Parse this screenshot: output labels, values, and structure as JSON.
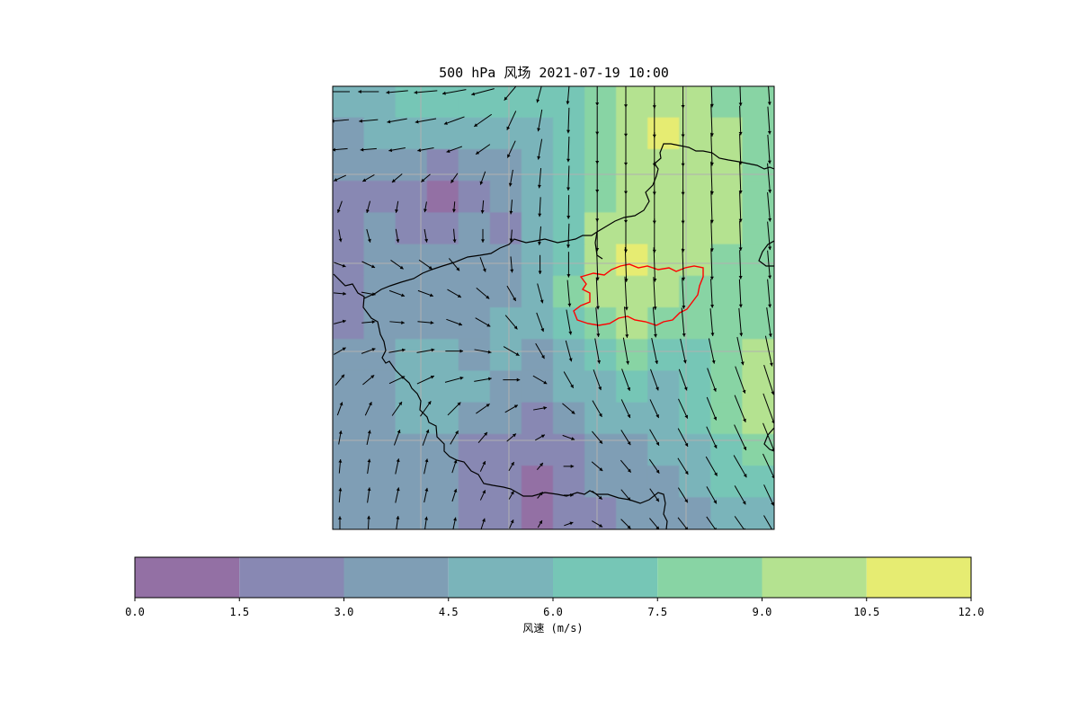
{
  "title": "500 hPa 风场 2021-07-19 10:00",
  "colorbar": {
    "label": "风速 (m/s)",
    "ticks": [
      "0.0",
      "1.5",
      "3.0",
      "4.5",
      "6.0",
      "7.5",
      "9.0",
      "10.5",
      "12.0"
    ],
    "bins": [
      {
        "min": 0.0,
        "max": 1.5,
        "color": "#9370a4"
      },
      {
        "min": 1.5,
        "max": 3.0,
        "color": "#8888b3"
      },
      {
        "min": 3.0,
        "max": 4.5,
        "color": "#7f9eb5"
      },
      {
        "min": 4.5,
        "max": 6.0,
        "color": "#7ab4ba"
      },
      {
        "min": 6.0,
        "max": 7.5,
        "color": "#76c6b6"
      },
      {
        "min": 7.5,
        "max": 9.0,
        "color": "#88d4a4"
      },
      {
        "min": 9.0,
        "max": 10.5,
        "color": "#b4e290"
      },
      {
        "min": 10.5,
        "max": 12.0,
        "color": "#e6ec72"
      }
    ]
  },
  "map": {
    "grid_lines": "on",
    "boundary_color": "#000000",
    "highlight_region_color": "#ff0000",
    "wind_speed_grid_ms": [
      [
        5.0,
        5.5,
        6.0,
        6.5,
        6.5,
        6.0,
        6.0,
        7.0,
        8.0,
        9.5,
        10.0,
        9.5,
        8.5,
        7.5
      ],
      [
        4.0,
        4.5,
        5.0,
        5.0,
        5.0,
        5.0,
        5.5,
        7.0,
        8.5,
        10.0,
        10.5,
        10.0,
        9.0,
        8.0
      ],
      [
        3.0,
        3.5,
        3.0,
        2.5,
        3.0,
        4.0,
        5.0,
        7.0,
        8.5,
        9.5,
        10.0,
        10.0,
        9.5,
        8.5
      ],
      [
        2.5,
        2.0,
        2.0,
        1.0,
        2.5,
        3.5,
        5.0,
        6.5,
        8.5,
        9.5,
        10.0,
        10.0,
        9.0,
        8.5
      ],
      [
        2.5,
        3.0,
        2.5,
        2.5,
        3.0,
        1.5,
        4.5,
        6.5,
        9.0,
        10.0,
        10.0,
        9.5,
        9.0,
        8.0
      ],
      [
        2.5,
        3.5,
        3.5,
        4.0,
        3.5,
        3.5,
        4.5,
        7.0,
        9.5,
        10.5,
        10.0,
        9.0,
        8.5,
        8.0
      ],
      [
        2.5,
        3.5,
        4.0,
        3.5,
        4.0,
        4.0,
        5.0,
        7.5,
        9.5,
        10.0,
        9.5,
        8.5,
        8.0,
        8.0
      ],
      [
        2.5,
        3.0,
        3.5,
        4.0,
        4.0,
        4.5,
        5.0,
        7.0,
        8.5,
        9.0,
        8.5,
        8.0,
        7.5,
        8.5
      ],
      [
        3.0,
        3.5,
        4.5,
        4.5,
        4.0,
        4.5,
        4.0,
        5.5,
        7.0,
        7.5,
        7.0,
        6.5,
        7.5,
        9.0
      ],
      [
        3.0,
        3.5,
        4.5,
        5.0,
        4.5,
        4.0,
        3.5,
        4.5,
        5.5,
        6.0,
        5.5,
        6.0,
        7.5,
        9.0
      ],
      [
        3.0,
        3.5,
        4.5,
        4.5,
        4.0,
        3.0,
        2.5,
        3.5,
        4.5,
        5.0,
        5.0,
        6.0,
        7.5,
        9.5
      ],
      [
        3.0,
        3.5,
        4.0,
        3.5,
        2.5,
        2.0,
        1.5,
        2.0,
        3.5,
        4.0,
        4.5,
        5.5,
        7.0,
        8.5
      ],
      [
        3.0,
        3.5,
        3.5,
        3.0,
        2.0,
        1.5,
        1.0,
        1.5,
        3.0,
        3.5,
        4.0,
        5.0,
        6.0,
        7.0
      ],
      [
        3.5,
        4.0,
        3.5,
        3.0,
        2.5,
        1.5,
        1.0,
        1.5,
        2.5,
        3.0,
        3.5,
        4.0,
        4.5,
        5.0
      ]
    ],
    "wind_direction_deg_grid": [
      [
        270,
        270,
        265,
        260,
        255,
        220,
        195,
        185,
        180,
        180,
        180,
        180,
        178,
        176
      ],
      [
        265,
        265,
        260,
        250,
        235,
        205,
        190,
        182,
        180,
        180,
        180,
        180,
        178,
        176
      ],
      [
        245,
        240,
        230,
        215,
        200,
        190,
        185,
        182,
        180,
        180,
        180,
        180,
        178,
        175
      ],
      [
        200,
        195,
        190,
        185,
        185,
        185,
        183,
        181,
        180,
        180,
        180,
        180,
        178,
        175
      ],
      [
        170,
        165,
        170,
        175,
        180,
        185,
        185,
        182,
        180,
        180,
        180,
        180,
        178,
        175
      ],
      [
        110,
        115,
        125,
        140,
        160,
        175,
        180,
        180,
        178,
        178,
        178,
        178,
        178,
        175
      ],
      [
        95,
        100,
        110,
        120,
        130,
        150,
        165,
        175,
        177,
        177,
        177,
        177,
        177,
        175
      ],
      [
        75,
        85,
        95,
        110,
        120,
        140,
        160,
        170,
        175,
        175,
        175,
        175,
        175,
        172
      ],
      [
        60,
        70,
        80,
        90,
        100,
        120,
        150,
        165,
        170,
        170,
        168,
        168,
        168,
        168
      ],
      [
        40,
        50,
        65,
        75,
        80,
        90,
        120,
        150,
        160,
        160,
        160,
        160,
        160,
        162
      ],
      [
        20,
        25,
        35,
        45,
        55,
        60,
        80,
        130,
        150,
        155,
        155,
        155,
        158,
        160
      ],
      [
        10,
        12,
        20,
        30,
        40,
        50,
        60,
        110,
        140,
        148,
        150,
        152,
        155,
        158
      ],
      [
        5,
        8,
        12,
        18,
        25,
        30,
        40,
        90,
        130,
        140,
        145,
        148,
        150,
        155
      ],
      [
        0,
        3,
        8,
        12,
        18,
        25,
        30,
        70,
        120,
        135,
        140,
        142,
        145,
        150
      ]
    ]
  }
}
